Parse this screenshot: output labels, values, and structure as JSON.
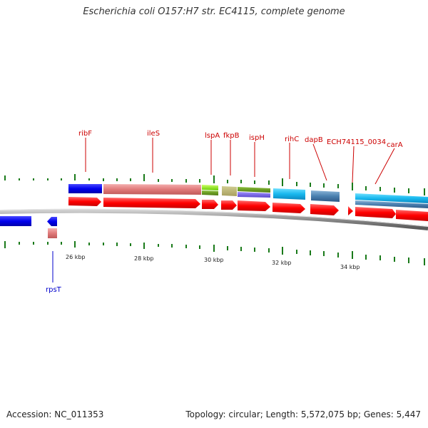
{
  "title": "Escherichia coli O157:H7 str. EC4115, complete genome",
  "footer": {
    "accession": "Accession: NC_011353",
    "summary": "Topology: circular; Length: 5,572,075 bp; Genes: 5,447"
  },
  "ticks": [
    "26 kbp",
    "28 kbp",
    "30 kbp",
    "32 kbp",
    "34 kbp"
  ],
  "gene_labels": {
    "ribF": "ribF",
    "ileS": "ileS",
    "lspA": "lspA",
    "fkpB": "fkpB",
    "ispH": "ispH",
    "rihC": "rihC",
    "dapB": "dapB",
    "ech": "ECH74115_0034",
    "carA": "carA",
    "rpsT": "rpsT"
  },
  "colors": {
    "cds": "#ff1a1a",
    "blue_gene": "#1a1aff",
    "pink_gene": "#e88080",
    "label_red": "#cc0000",
    "label_blue": "#0000cc",
    "tick_green": "#1a7a1a",
    "backbone": "#888888"
  }
}
